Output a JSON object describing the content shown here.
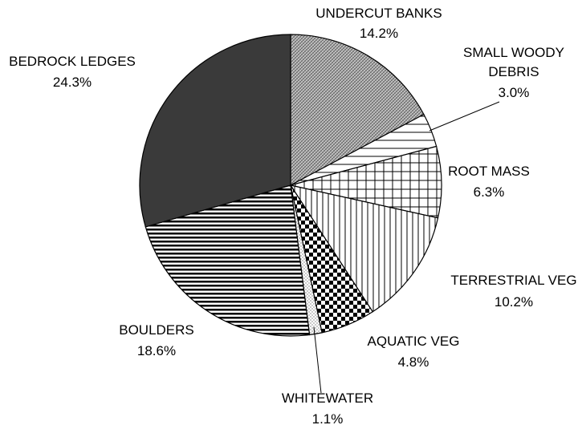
{
  "chart_data": {
    "type": "pie",
    "title": "",
    "start_angle_deg": 0,
    "direction": "clockwise",
    "slices": [
      {
        "name": "UNDERCUT BANKS",
        "value": 14.2,
        "value_label": "14.2%",
        "pattern": "cross-hatch-gray"
      },
      {
        "name": "SMALL WOODY DEBRIS",
        "value": 3.0,
        "value_label": "3.0%",
        "pattern": "horizontal-lines"
      },
      {
        "name": "ROOT MASS",
        "value": 6.3,
        "value_label": "6.3%",
        "pattern": "grid"
      },
      {
        "name": "TERRESTRIAL VEG",
        "value": 10.2,
        "value_label": "10.2%",
        "pattern": "vertical-lines"
      },
      {
        "name": "AQUATIC VEG",
        "value": 4.8,
        "value_label": "4.8%",
        "pattern": "checkerboard"
      },
      {
        "name": "WHITEWATER",
        "value": 1.1,
        "value_label": "1.1%",
        "pattern": "dots"
      },
      {
        "name": "BOULDERS",
        "value": 18.6,
        "value_label": "18.6%",
        "pattern": "dense-horizontal-lines"
      },
      {
        "name": "BEDROCK LEDGES",
        "value": 24.3,
        "value_label": "24.3%",
        "pattern": "solid-dark"
      }
    ],
    "colors": {
      "outline": "#000000",
      "dark_fill": "#3a3a3a",
      "cross_fill": "#b0b0b0"
    }
  }
}
